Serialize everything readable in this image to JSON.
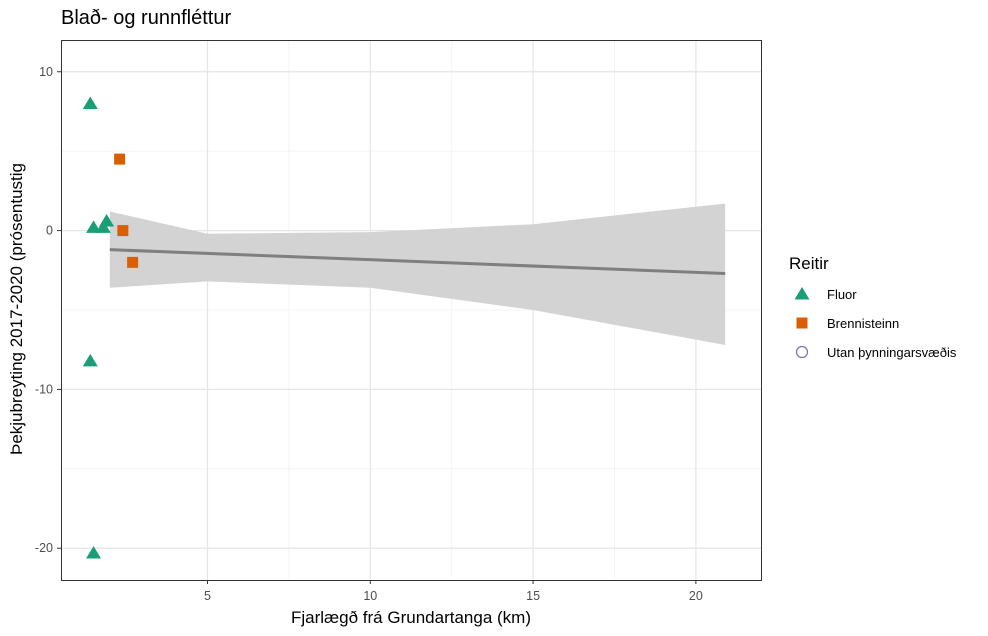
{
  "chart_data": {
    "type": "scatter",
    "title": "Blað- og runnfléttur",
    "xlabel": "Fjarlægð frá Grundartanga (km)",
    "ylabel": "Þekjubreyting 2017-2020 (prósentustig",
    "xlim": [
      0.5,
      22
    ],
    "ylim": [
      -22,
      12
    ],
    "x_ticks": [
      5,
      10,
      15,
      20
    ],
    "x_tick_labels": [
      "5",
      "10",
      "15",
      "20"
    ],
    "y_ticks": [
      10,
      0,
      -10,
      -20
    ],
    "y_tick_labels": [
      "10",
      "0",
      "-10",
      "-20"
    ],
    "grid": true,
    "legend": {
      "title": "Reitir",
      "placement": "right",
      "items": [
        {
          "label": "Fluor",
          "shape": "triangle",
          "color": "#1b9e77"
        },
        {
          "label": "Brennisteinn",
          "shape": "square",
          "color": "#d95f02"
        },
        {
          "label": "Utan þynningarsvæðis",
          "shape": "circle-open",
          "color": "#7570b3"
        }
      ]
    },
    "series": [
      {
        "name": "Fluor",
        "shape": "triangle",
        "color": "#1b9e77",
        "points": [
          {
            "x": 1.4,
            "y": 8.0
          },
          {
            "x": 1.5,
            "y": 0.2
          },
          {
            "x": 1.8,
            "y": 0.2
          },
          {
            "x": 1.9,
            "y": 0.6
          },
          {
            "x": 1.4,
            "y": -8.2
          },
          {
            "x": 1.5,
            "y": -20.3
          }
        ]
      },
      {
        "name": "Brennisteinn",
        "shape": "square",
        "color": "#d95f02",
        "points": [
          {
            "x": 2.3,
            "y": 4.5
          },
          {
            "x": 2.4,
            "y": 0.0
          },
          {
            "x": 2.7,
            "y": -2.0
          }
        ]
      },
      {
        "name": "Utan þynningarsvæðis",
        "shape": "circle-open",
        "color": "#7570b3",
        "points": []
      }
    ],
    "trend_line": {
      "color": "#7f7f7f",
      "x": [
        2.0,
        20.9
      ],
      "y": [
        -1.2,
        -2.7
      ]
    },
    "confidence_band": {
      "color": "#d3d3d3",
      "x": [
        2.0,
        5,
        10,
        15,
        20.9
      ],
      "upper": [
        1.2,
        -0.2,
        -0.1,
        0.4,
        1.7
      ],
      "lower": [
        -3.6,
        -3.2,
        -3.6,
        -5.0,
        -7.2
      ]
    }
  }
}
